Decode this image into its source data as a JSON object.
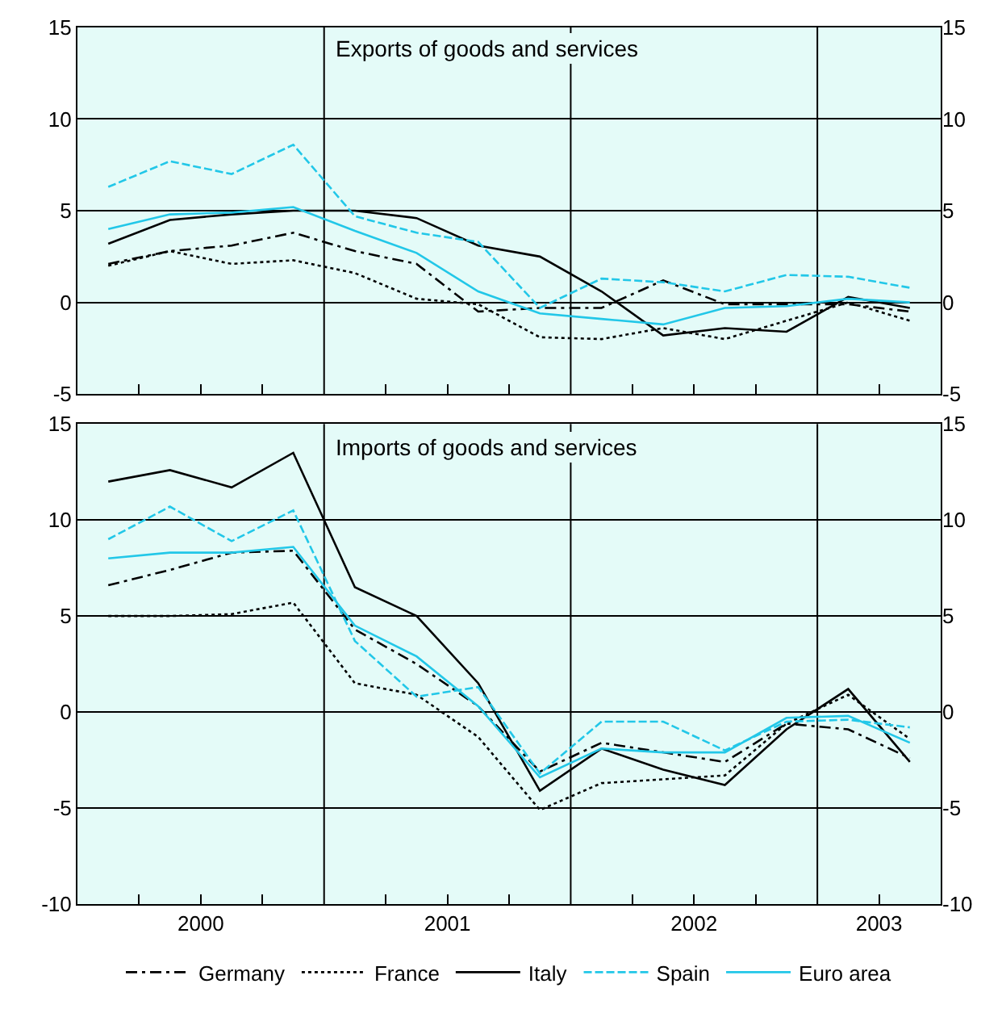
{
  "chart_data": [
    {
      "type": "line",
      "title": "Exports of goods and services",
      "x": [
        2000.125,
        2000.375,
        2000.625,
        2000.875,
        2001.125,
        2001.375,
        2001.625,
        2001.875,
        2002.125,
        2002.375,
        2002.625,
        2002.875,
        2003.125,
        2003.375
      ],
      "series": [
        {
          "color": "#000000",
          "line_style": "dashdot",
          "values": [
            2.1,
            2.8,
            3.1,
            3.8,
            2.8,
            2.1,
            -0.5,
            -0.3,
            -0.3,
            1.2,
            -0.1,
            -0.1,
            -0.1,
            -0.5
          ]
        },
        {
          "color": "#000000",
          "line_style": "dotted",
          "values": [
            2.0,
            2.8,
            2.1,
            2.3,
            1.6,
            0.2,
            -0.1,
            -1.9,
            -2.0,
            -1.4,
            -2.0,
            -1.0,
            0.0,
            -1.0
          ]
        },
        {
          "color": "#000000",
          "line_style": "solid",
          "values": [
            3.2,
            4.5,
            4.8,
            5.0,
            5.0,
            4.6,
            3.1,
            2.5,
            0.6,
            -1.8,
            -1.4,
            -1.6,
            0.3,
            -0.3
          ]
        },
        {
          "color": "#22c7e8",
          "line_style": "dashed",
          "values": [
            6.3,
            7.7,
            7.0,
            8.6,
            4.7,
            3.8,
            3.3,
            -0.3,
            1.3,
            1.1,
            0.6,
            1.5,
            1.4,
            0.8
          ]
        },
        {
          "color": "#22c7e8",
          "line_style": "solid",
          "values": [
            4.0,
            4.8,
            4.9,
            5.2,
            3.9,
            2.7,
            0.6,
            -0.6,
            -0.9,
            -1.2,
            -0.3,
            -0.2,
            0.2,
            0.0
          ]
        }
      ],
      "xlim": [
        2000,
        2003.5
      ],
      "xticks": [
        {
          "value": 2000.25,
          "label": null
        },
        {
          "value": 2000.5,
          "label": null
        },
        {
          "value": 2000.75,
          "label": null
        },
        {
          "value": 2001.25,
          "label": null
        },
        {
          "value": 2001.5,
          "label": null
        },
        {
          "value": 2001.75,
          "label": null
        },
        {
          "value": 2002.25,
          "label": null
        },
        {
          "value": 2002.5,
          "label": null
        },
        {
          "value": 2002.75,
          "label": null
        },
        {
          "value": 2003.25,
          "label": null
        }
      ],
      "ylim": [
        -5,
        15
      ],
      "yticks": [
        -5,
        0,
        5,
        10,
        15
      ],
      "y2lim": [
        -5,
        15
      ],
      "y2ticks": [
        -5,
        0,
        5,
        10,
        15
      ],
      "ref_lines": [
        {
          "axis": "x",
          "value": 2001,
          "color": "#000000"
        },
        {
          "axis": "x",
          "value": 2002,
          "color": "#000000"
        },
        {
          "axis": "x",
          "value": 2003,
          "color": "#000000"
        }
      ],
      "grid": "y",
      "tick_labels": "y",
      "marker": "none"
    },
    {
      "type": "line",
      "title": "Imports of goods and services",
      "x": [
        2000.125,
        2000.375,
        2000.625,
        2000.875,
        2001.125,
        2001.375,
        2001.625,
        2001.875,
        2002.125,
        2002.375,
        2002.625,
        2002.875,
        2003.125,
        2003.375
      ],
      "series": [
        {
          "name": "Germany",
          "color": "#000000",
          "line_style": "dashdot",
          "values": [
            6.6,
            7.4,
            8.3,
            8.4,
            4.3,
            2.5,
            0.3,
            -3.1,
            -1.6,
            -2.1,
            -2.6,
            -0.6,
            -0.9,
            -2.4
          ]
        },
        {
          "name": "France",
          "color": "#000000",
          "line_style": "dotted",
          "values": [
            5.0,
            5.0,
            5.1,
            5.7,
            1.5,
            0.9,
            -1.3,
            -5.1,
            -3.7,
            -3.5,
            -3.3,
            -0.6,
            0.9,
            -1.4
          ]
        },
        {
          "name": "Italy",
          "color": "#000000",
          "line_style": "solid",
          "values": [
            12.0,
            12.6,
            11.7,
            13.5,
            6.5,
            5.0,
            1.5,
            -4.1,
            -1.9,
            -3.0,
            -3.8,
            -0.9,
            1.2,
            -2.6
          ]
        },
        {
          "name": "Spain",
          "color": "#22c7e8",
          "line_style": "dashed",
          "values": [
            9.0,
            10.7,
            8.9,
            10.5,
            3.7,
            0.8,
            1.3,
            -3.2,
            -0.5,
            -0.5,
            -2.0,
            -0.5,
            -0.4,
            -0.8
          ]
        },
        {
          "name": "Euro area",
          "color": "#22c7e8",
          "line_style": "solid",
          "values": [
            8.0,
            8.3,
            8.3,
            8.6,
            4.5,
            2.9,
            0.3,
            -3.4,
            -1.9,
            -2.1,
            -2.1,
            -0.3,
            -0.2,
            -1.6
          ]
        }
      ],
      "xlim": [
        2000,
        2003.5
      ],
      "xticks": [
        {
          "value": 2000.25,
          "label": null
        },
        {
          "value": 2000.5,
          "label": "2000"
        },
        {
          "value": 2000.75,
          "label": null
        },
        {
          "value": 2001.25,
          "label": null
        },
        {
          "value": 2001.5,
          "label": "2001"
        },
        {
          "value": 2001.75,
          "label": null
        },
        {
          "value": 2002.25,
          "label": null
        },
        {
          "value": 2002.5,
          "label": "2002"
        },
        {
          "value": 2002.75,
          "label": null
        },
        {
          "value": 2003.25,
          "label": "2003"
        }
      ],
      "ylim": [
        -10,
        15
      ],
      "yticks": [
        -10,
        -5,
        0,
        5,
        10,
        15
      ],
      "y2lim": [
        -10,
        15
      ],
      "y2ticks": [
        -10,
        -5,
        0,
        5,
        10,
        15
      ],
      "ref_lines": [
        {
          "axis": "x",
          "value": 2001,
          "color": "#000000"
        },
        {
          "axis": "x",
          "value": 2002,
          "color": "#000000"
        },
        {
          "axis": "x",
          "value": 2003,
          "color": "#000000"
        }
      ],
      "grid": "y",
      "legend": "bottom",
      "marker": "none"
    }
  ]
}
